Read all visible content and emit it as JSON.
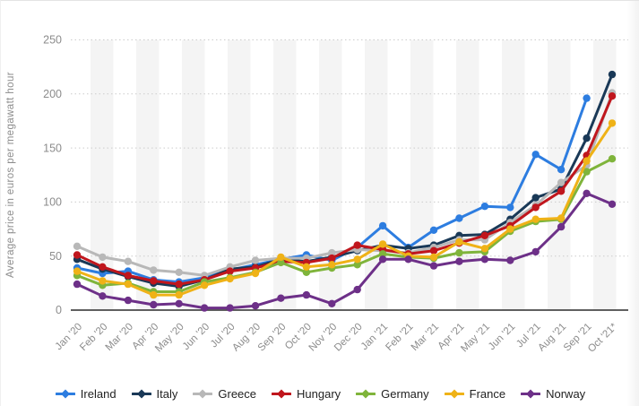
{
  "chart_data": {
    "type": "line",
    "title": "",
    "ylabel": "Average price in euros per megawatt hour",
    "xlabel": "",
    "ylim": [
      0,
      250
    ],
    "y_ticks": [
      0,
      50,
      100,
      150,
      200,
      250
    ],
    "grid": "horizontal-dotted",
    "legend_position": "bottom",
    "categories": [
      "Jan '20",
      "Feb '20",
      "Mar '20",
      "Apr '20",
      "May '20",
      "Jun '20",
      "Jul '20",
      "Aug '20",
      "Sep '20",
      "Oct '20",
      "Nov '20",
      "Dec '20",
      "Jan '21",
      "Feb '21",
      "Mar '21",
      "Apr '21",
      "May '21",
      "Jun '21",
      "Jul '21",
      "Aug '21",
      "Sep '21",
      "Oct '21*"
    ],
    "series": [
      {
        "name": "Ireland",
        "color": "#2d7de0",
        "values": [
          39,
          34,
          36,
          28,
          26,
          30,
          37,
          42,
          47,
          51,
          46,
          58,
          78,
          58,
          74,
          85,
          96,
          95,
          144,
          130,
          196,
          null
        ]
      },
      {
        "name": "Italy",
        "color": "#1a3957",
        "values": [
          47,
          38,
          31,
          25,
          22,
          28,
          38,
          40,
          47,
          45,
          49,
          55,
          60,
          57,
          60,
          69,
          70,
          84,
          104,
          112,
          159,
          218
        ]
      },
      {
        "name": "Greece",
        "color": "#b8b8b8",
        "values": [
          59,
          49,
          45,
          37,
          35,
          32,
          40,
          46,
          48,
          48,
          53,
          56,
          55,
          53,
          58,
          65,
          65,
          81,
          97,
          118,
          134,
          201
        ]
      },
      {
        "name": "Hungary",
        "color": "#c0161d",
        "values": [
          51,
          40,
          32,
          27,
          24,
          28,
          36,
          39,
          45,
          44,
          48,
          60,
          56,
          52,
          55,
          62,
          69,
          78,
          95,
          110,
          143,
          198
        ]
      },
      {
        "name": "Germany",
        "color": "#7fb43b",
        "values": [
          32,
          23,
          25,
          17,
          17,
          26,
          30,
          35,
          44,
          35,
          39,
          42,
          52,
          49,
          48,
          53,
          54,
          73,
          82,
          84,
          128,
          140
        ]
      },
      {
        "name": "France",
        "color": "#efb217",
        "values": [
          36,
          27,
          24,
          14,
          14,
          23,
          29,
          34,
          49,
          40,
          42,
          47,
          61,
          50,
          49,
          63,
          57,
          75,
          84,
          85,
          138,
          173
        ]
      },
      {
        "name": "Norway",
        "color": "#6d3088",
        "values": [
          24,
          13,
          9,
          5,
          6,
          2,
          2,
          4,
          11,
          14,
          6,
          19,
          47,
          47,
          41,
          45,
          47,
          46,
          54,
          77,
          108,
          98
        ]
      }
    ]
  },
  "style": {
    "stripe_color": "#f4f4f4",
    "gridline_color": "#cccccc",
    "baseline_color": "#2b2b2b"
  }
}
